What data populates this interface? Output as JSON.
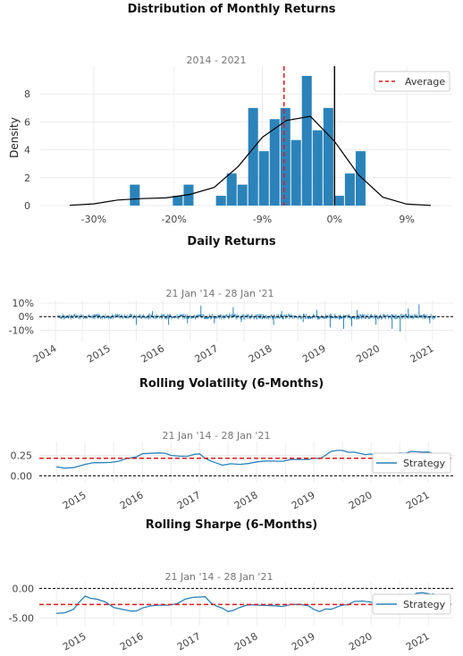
{
  "chart_data": [
    {
      "type": "bar",
      "title": "Distribution of Monthly Returns",
      "subtitle": "2014 - 2021",
      "ylabel": "Density",
      "xlabel": "",
      "x_ticks": [
        "-30%",
        "-20%",
        "-9%",
        "0%",
        "9%"
      ],
      "x_tick_values": [
        -0.3,
        -0.2,
        -0.09,
        0.0,
        0.09
      ],
      "y_ticks": [
        "0",
        "2",
        "4",
        "6",
        "8"
      ],
      "y_tick_values": [
        0,
        2,
        4,
        6,
        8
      ],
      "xlim": [
        -0.35,
        0.14
      ],
      "ylim": [
        0,
        10
      ],
      "bin_width": 0.0134,
      "bin_starts": [
        -0.255,
        -0.2015,
        -0.188,
        -0.1477,
        -0.1343,
        -0.121,
        -0.1076,
        -0.0942,
        -0.0808,
        -0.0674,
        -0.0541,
        -0.0407,
        -0.0273,
        -0.0139,
        -0.0005,
        0.0129,
        0.0263
      ],
      "values": [
        1.5,
        0.7,
        1.5,
        0.7,
        2.3,
        1.5,
        7.0,
        3.9,
        6.2,
        7.0,
        4.7,
        9.3,
        5.4,
        7.0,
        0.7,
        2.3,
        3.9
      ],
      "kde": {
        "x": [
          -0.33,
          -0.3,
          -0.27,
          -0.24,
          -0.21,
          -0.18,
          -0.15,
          -0.12,
          -0.09,
          -0.06,
          -0.03,
          0.0,
          0.03,
          0.06,
          0.09,
          0.12
        ],
        "y": [
          0.02,
          0.12,
          0.4,
          0.5,
          0.55,
          0.8,
          1.3,
          2.8,
          4.9,
          6.1,
          6.4,
          4.6,
          2.2,
          0.6,
          0.1,
          0.01
        ]
      },
      "average": {
        "label": "Average",
        "value": -0.063
      },
      "zero_line": 0.0
    },
    {
      "type": "bar",
      "title": "Daily Returns",
      "subtitle": "21 Jan '14 - 28 Jan '21",
      "x_ticks": [
        "2014",
        "2015",
        "2016",
        "2017",
        "2018",
        "2019",
        "2020",
        "2021"
      ],
      "y_ticks": [
        "10%",
        "0%",
        "-10%"
      ],
      "y_tick_values": [
        0.1,
        0.0,
        -0.1
      ],
      "xlim": [
        2013.7,
        2021.4
      ],
      "ylim": [
        -0.13,
        0.12
      ],
      "start": 2014.05,
      "end": 2021.07,
      "spikes": [
        {
          "x": 2015.5,
          "y": -0.06
        },
        {
          "x": 2015.8,
          "y": 0.04
        },
        {
          "x": 2016.1,
          "y": -0.06
        },
        {
          "x": 2016.45,
          "y": -0.05
        },
        {
          "x": 2016.7,
          "y": 0.08
        },
        {
          "x": 2016.95,
          "y": -0.05
        },
        {
          "x": 2017.3,
          "y": 0.07
        },
        {
          "x": 2017.45,
          "y": -0.04
        },
        {
          "x": 2018.05,
          "y": -0.06
        },
        {
          "x": 2018.2,
          "y": 0.04
        },
        {
          "x": 2018.6,
          "y": -0.04
        },
        {
          "x": 2018.85,
          "y": 0.05
        },
        {
          "x": 2019.1,
          "y": -0.08
        },
        {
          "x": 2019.35,
          "y": -0.09
        },
        {
          "x": 2019.5,
          "y": -0.07
        },
        {
          "x": 2019.6,
          "y": 0.05
        },
        {
          "x": 2019.95,
          "y": -0.06
        },
        {
          "x": 2020.25,
          "y": -0.09
        },
        {
          "x": 2020.4,
          "y": -0.11
        },
        {
          "x": 2020.55,
          "y": 0.06
        },
        {
          "x": 2020.75,
          "y": 0.09
        },
        {
          "x": 2020.95,
          "y": -0.05
        }
      ],
      "zero_line": 0.0
    },
    {
      "type": "line",
      "title": "Rolling Volatility (6-Months)",
      "subtitle": "21 Jan '14 - 28 Jan '21",
      "x_ticks": [
        "2015",
        "2016",
        "2017",
        "2018",
        "2019",
        "2020",
        "2021"
      ],
      "y_ticks": [
        "0.25",
        "0.00"
      ],
      "y_tick_values": [
        0.25,
        0.0
      ],
      "xlim": [
        2014.2,
        2021.45
      ],
      "ylim": [
        -0.04,
        0.42
      ],
      "series": [
        {
          "name": "Strategy",
          "x": [
            2014.5,
            2014.8,
            2015.0,
            2015.3,
            2015.6,
            2015.8,
            2016.0,
            2016.3,
            2016.5,
            2016.8,
            2017.0,
            2017.2,
            2017.4,
            2017.7,
            2018.0,
            2018.3,
            2018.6,
            2018.9,
            2019.1,
            2019.3,
            2019.5,
            2019.7,
            2019.9,
            2020.1,
            2020.3,
            2020.5,
            2020.7,
            2020.9,
            2021.1
          ],
          "y": [
            0.11,
            0.1,
            0.14,
            0.16,
            0.18,
            0.22,
            0.27,
            0.28,
            0.25,
            0.24,
            0.27,
            0.18,
            0.13,
            0.14,
            0.17,
            0.18,
            0.2,
            0.2,
            0.21,
            0.3,
            0.31,
            0.29,
            0.26,
            0.25,
            0.22,
            0.28,
            0.3,
            0.29,
            0.27
          ]
        }
      ],
      "average_value": 0.215,
      "zero_line": 0.0,
      "legend": "bottom-right"
    },
    {
      "type": "line",
      "title": "Rolling Sharpe (6-Months)",
      "subtitle": "21 Jan '14 - 28 Jan '21",
      "x_ticks": [
        "2015",
        "2016",
        "2017",
        "2018",
        "2019",
        "2020",
        "2021"
      ],
      "y_ticks": [
        "0.00",
        "-5.00"
      ],
      "y_tick_values": [
        0.0,
        -5.0
      ],
      "xlim": [
        2014.2,
        2021.45
      ],
      "ylim": [
        -5.8,
        1.1
      ],
      "series": [
        {
          "name": "Strategy",
          "x": [
            2014.5,
            2014.8,
            2015.0,
            2015.2,
            2015.5,
            2015.8,
            2016.0,
            2016.3,
            2016.6,
            2016.9,
            2017.1,
            2017.3,
            2017.5,
            2017.7,
            2018.0,
            2018.3,
            2018.6,
            2018.9,
            2019.1,
            2019.3,
            2019.5,
            2019.7,
            2020.0,
            2020.2,
            2020.4,
            2020.6,
            2020.8,
            2021.0,
            2021.1
          ],
          "y": [
            -4.2,
            -3.5,
            -1.3,
            -1.8,
            -3.2,
            -3.8,
            -3.3,
            -2.8,
            -2.6,
            -1.5,
            -1.4,
            -3.0,
            -3.9,
            -3.2,
            -2.8,
            -2.9,
            -2.7,
            -2.9,
            -3.9,
            -3.5,
            -2.8,
            -2.2,
            -2.3,
            -2.9,
            -2.6,
            -1.3,
            -0.8,
            -0.9,
            -0.9
          ]
        }
      ],
      "average_value": -2.7,
      "zero_line": 0.0,
      "legend": "bottom-right"
    }
  ],
  "colors": {
    "bar": "#2b83ba",
    "line": "#2b83ba",
    "average": "#e41a1c",
    "kde": "#000000",
    "zero": "#000000",
    "grid": "#ececec"
  }
}
